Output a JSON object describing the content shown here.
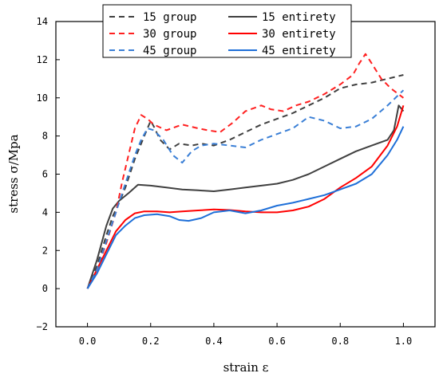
{
  "chart_data": {
    "type": "line",
    "xlabel": "strain ε",
    "ylabel": "stress σ/Mpa",
    "xlim": [
      -0.1,
      1.1
    ],
    "ylim": [
      -2,
      14
    ],
    "xticks": [
      0.0,
      0.2,
      0.4,
      0.6,
      0.8,
      1.0
    ],
    "xtick_labels": [
      "0.0",
      "0.2",
      "0.4",
      "0.6",
      "0.8",
      "1.0"
    ],
    "yticks": [
      -2,
      0,
      2,
      4,
      6,
      8,
      10,
      12,
      14
    ],
    "ytick_labels": [
      "−2",
      "0",
      "2",
      "4",
      "6",
      "8",
      "10",
      "12",
      "14"
    ],
    "grid": false,
    "legend": "top-center",
    "series": [
      {
        "name": "15 group",
        "color": "#404040",
        "dash": "dashed",
        "x": [
          0,
          0.03,
          0.06,
          0.08,
          0.1,
          0.12,
          0.15,
          0.18,
          0.2,
          0.21,
          0.23,
          0.26,
          0.29,
          0.33,
          0.36,
          0.4,
          0.45,
          0.5,
          0.55,
          0.6,
          0.65,
          0.7,
          0.75,
          0.8,
          0.85,
          0.9,
          0.95,
          1.0
        ],
        "y": [
          0,
          1.2,
          2.8,
          3.8,
          4.5,
          5.3,
          6.8,
          8.0,
          8.8,
          8.5,
          7.8,
          7.3,
          7.6,
          7.5,
          7.6,
          7.5,
          7.8,
          8.2,
          8.6,
          8.9,
          9.2,
          9.6,
          10.0,
          10.5,
          10.7,
          10.8,
          11.0,
          11.2
        ]
      },
      {
        "name": "15 entirety",
        "color": "#404040",
        "dash": "solid",
        "x": [
          0,
          0.03,
          0.06,
          0.08,
          0.1,
          0.13,
          0.16,
          0.2,
          0.25,
          0.3,
          0.35,
          0.4,
          0.45,
          0.5,
          0.55,
          0.6,
          0.65,
          0.7,
          0.75,
          0.8,
          0.85,
          0.9,
          0.95,
          0.97,
          0.985,
          1.0
        ],
        "y": [
          0,
          1.5,
          3.3,
          4.2,
          4.6,
          5.0,
          5.45,
          5.4,
          5.3,
          5.2,
          5.15,
          5.1,
          5.2,
          5.3,
          5.4,
          5.5,
          5.7,
          6.0,
          6.4,
          6.8,
          7.2,
          7.5,
          7.8,
          8.3,
          9.6,
          9.3
        ]
      },
      {
        "name": "30 group",
        "color": "#ff2020",
        "dash": "dashed",
        "x": [
          0,
          0.03,
          0.06,
          0.09,
          0.11,
          0.13,
          0.15,
          0.17,
          0.19,
          0.21,
          0.25,
          0.3,
          0.35,
          0.38,
          0.42,
          0.46,
          0.5,
          0.55,
          0.58,
          0.62,
          0.66,
          0.7,
          0.75,
          0.8,
          0.84,
          0.86,
          0.88,
          0.9,
          0.93,
          0.96,
          1.0
        ],
        "y": [
          0,
          1.0,
          2.4,
          4.0,
          5.6,
          7.0,
          8.4,
          9.1,
          8.9,
          8.6,
          8.3,
          8.6,
          8.4,
          8.3,
          8.2,
          8.7,
          9.3,
          9.6,
          9.4,
          9.3,
          9.6,
          9.8,
          10.2,
          10.7,
          11.2,
          11.8,
          12.3,
          11.8,
          11.0,
          10.5,
          10.0
        ]
      },
      {
        "name": "30 entirety",
        "color": "#ff0000",
        "dash": "solid",
        "x": [
          0,
          0.03,
          0.06,
          0.09,
          0.12,
          0.15,
          0.18,
          0.22,
          0.26,
          0.3,
          0.35,
          0.4,
          0.45,
          0.5,
          0.55,
          0.6,
          0.65,
          0.7,
          0.75,
          0.8,
          0.85,
          0.9,
          0.95,
          0.98,
          1.0
        ],
        "y": [
          0,
          1.0,
          2.0,
          3.0,
          3.6,
          3.95,
          4.05,
          4.05,
          4.0,
          4.05,
          4.1,
          4.15,
          4.12,
          4.05,
          4.0,
          4.0,
          4.1,
          4.3,
          4.7,
          5.3,
          5.8,
          6.4,
          7.5,
          8.5,
          9.6
        ]
      },
      {
        "name": "45 group",
        "color": "#3a7fd6",
        "dash": "dashed",
        "x": [
          0,
          0.03,
          0.06,
          0.09,
          0.11,
          0.13,
          0.15,
          0.17,
          0.19,
          0.21,
          0.24,
          0.27,
          0.3,
          0.33,
          0.36,
          0.4,
          0.45,
          0.5,
          0.55,
          0.6,
          0.65,
          0.7,
          0.75,
          0.8,
          0.85,
          0.9,
          0.95,
          1.0
        ],
        "y": [
          0,
          1.0,
          2.5,
          4.0,
          5.0,
          6.0,
          7.0,
          7.8,
          8.4,
          8.3,
          7.8,
          7.0,
          6.6,
          7.2,
          7.5,
          7.6,
          7.5,
          7.4,
          7.8,
          8.1,
          8.4,
          9.0,
          8.8,
          8.4,
          8.5,
          8.9,
          9.6,
          10.4
        ]
      },
      {
        "name": "45 entirety",
        "color": "#1e6fd8",
        "dash": "solid",
        "x": [
          0,
          0.03,
          0.06,
          0.09,
          0.12,
          0.15,
          0.18,
          0.22,
          0.26,
          0.29,
          0.32,
          0.36,
          0.4,
          0.45,
          0.5,
          0.55,
          0.6,
          0.65,
          0.7,
          0.75,
          0.8,
          0.85,
          0.9,
          0.95,
          0.98,
          1.0
        ],
        "y": [
          0,
          0.8,
          1.8,
          2.8,
          3.3,
          3.7,
          3.85,
          3.9,
          3.8,
          3.6,
          3.55,
          3.7,
          4.0,
          4.1,
          3.95,
          4.1,
          4.35,
          4.5,
          4.7,
          4.9,
          5.2,
          5.5,
          6.0,
          7.0,
          7.8,
          8.5
        ]
      }
    ]
  }
}
